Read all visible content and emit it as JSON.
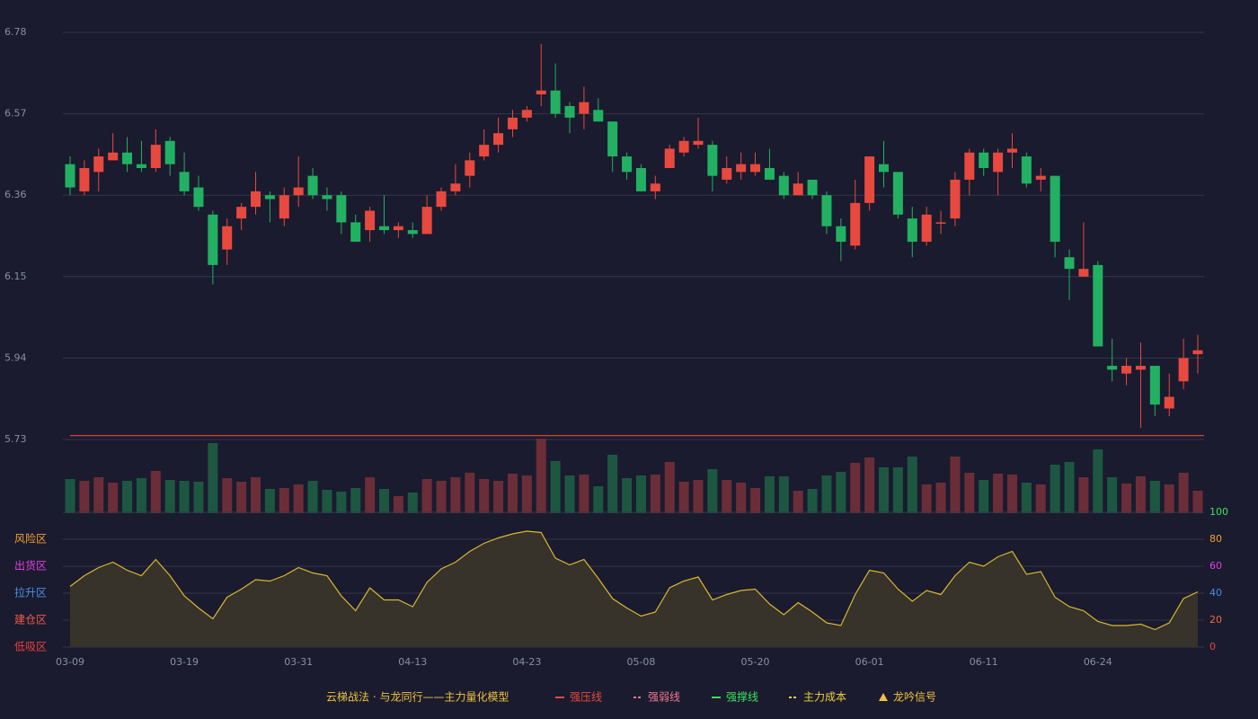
{
  "chart_data": {
    "type": "candlestick",
    "categories": [
      "03-09",
      null,
      null,
      null,
      null,
      null,
      null,
      null,
      "03-19",
      null,
      null,
      null,
      null,
      null,
      null,
      null,
      "03-31",
      null,
      null,
      null,
      null,
      null,
      null,
      null,
      "04-13",
      null,
      null,
      null,
      null,
      null,
      null,
      null,
      "04-23",
      null,
      null,
      null,
      null,
      null,
      null,
      null,
      "05-08",
      null,
      null,
      null,
      null,
      null,
      null,
      null,
      "05-20",
      null,
      null,
      null,
      null,
      null,
      null,
      null,
      "06-01",
      null,
      null,
      null,
      null,
      null,
      null,
      null,
      "06-11",
      null,
      null,
      null,
      null,
      null,
      null,
      null,
      "06-24",
      null,
      null,
      null,
      null,
      null,
      null,
      null
    ],
    "open": [
      6.44,
      6.37,
      6.42,
      6.45,
      6.47,
      6.44,
      6.43,
      6.5,
      6.42,
      6.38,
      6.31,
      6.22,
      6.3,
      6.33,
      6.36,
      6.3,
      6.36,
      6.41,
      6.36,
      6.36,
      6.29,
      6.27,
      6.28,
      6.27,
      6.27,
      6.26,
      6.33,
      6.37,
      6.41,
      6.46,
      6.49,
      6.53,
      6.56,
      6.62,
      6.63,
      6.59,
      6.57,
      6.58,
      6.55,
      6.46,
      6.43,
      6.37,
      6.43,
      6.47,
      6.49,
      6.49,
      6.4,
      6.42,
      6.42,
      6.43,
      6.41,
      6.36,
      6.4,
      6.36,
      6.28,
      6.23,
      6.34,
      6.44,
      6.42,
      6.3,
      6.24,
      6.29,
      6.3,
      6.4,
      6.47,
      6.42,
      6.47,
      6.46,
      6.4,
      6.41,
      6.2,
      6.15,
      6.18,
      5.92,
      5.9,
      5.91,
      5.92,
      5.81,
      5.88,
      5.95
    ],
    "close": [
      6.38,
      6.43,
      6.46,
      6.47,
      6.44,
      6.43,
      6.49,
      6.44,
      6.37,
      6.33,
      6.18,
      6.28,
      6.33,
      6.37,
      6.35,
      6.36,
      6.38,
      6.36,
      6.35,
      6.29,
      6.24,
      6.32,
      6.27,
      6.28,
      6.26,
      6.33,
      6.37,
      6.39,
      6.45,
      6.49,
      6.52,
      6.56,
      6.58,
      6.63,
      6.57,
      6.56,
      6.6,
      6.55,
      6.46,
      6.42,
      6.37,
      6.39,
      6.48,
      6.5,
      6.5,
      6.41,
      6.43,
      6.44,
      6.44,
      6.4,
      6.36,
      6.39,
      6.36,
      6.28,
      6.24,
      6.34,
      6.46,
      6.42,
      6.31,
      6.24,
      6.31,
      6.29,
      6.4,
      6.47,
      6.43,
      6.47,
      6.48,
      6.39,
      6.41,
      6.24,
      6.17,
      6.17,
      5.97,
      5.91,
      5.92,
      5.92,
      5.82,
      5.84,
      5.94,
      5.96
    ],
    "high": [
      6.46,
      6.45,
      6.48,
      6.52,
      6.51,
      6.5,
      6.53,
      6.51,
      6.47,
      6.41,
      6.32,
      6.3,
      6.34,
      6.42,
      6.37,
      6.38,
      6.46,
      6.43,
      6.38,
      6.37,
      6.31,
      6.33,
      6.36,
      6.29,
      6.29,
      6.36,
      6.38,
      6.44,
      6.47,
      6.53,
      6.56,
      6.58,
      6.59,
      6.75,
      6.7,
      6.6,
      6.64,
      6.61,
      6.55,
      6.47,
      6.44,
      6.41,
      6.49,
      6.51,
      6.56,
      6.5,
      6.46,
      6.47,
      6.47,
      6.48,
      6.42,
      6.42,
      6.4,
      6.37,
      6.3,
      6.4,
      6.46,
      6.5,
      6.42,
      6.33,
      6.33,
      6.32,
      6.42,
      6.48,
      6.48,
      6.48,
      6.52,
      6.47,
      6.43,
      6.41,
      6.22,
      6.29,
      6.19,
      5.99,
      5.94,
      5.98,
      5.92,
      5.9,
      5.99,
      6.0
    ],
    "low": [
      6.36,
      6.36,
      6.37,
      6.45,
      6.42,
      6.42,
      6.42,
      6.41,
      6.36,
      6.32,
      6.13,
      6.18,
      6.27,
      6.31,
      6.29,
      6.28,
      6.33,
      6.35,
      6.32,
      6.26,
      6.24,
      6.24,
      6.26,
      6.25,
      6.25,
      6.26,
      6.32,
      6.36,
      6.38,
      6.45,
      6.47,
      6.51,
      6.55,
      6.59,
      6.56,
      6.52,
      6.53,
      6.55,
      6.42,
      6.4,
      6.37,
      6.35,
      6.43,
      6.46,
      6.48,
      6.37,
      6.39,
      6.4,
      6.41,
      6.4,
      6.35,
      6.36,
      6.35,
      6.26,
      6.19,
      6.22,
      6.32,
      6.38,
      6.3,
      6.2,
      6.23,
      6.26,
      6.28,
      6.36,
      6.41,
      6.36,
      6.43,
      6.38,
      6.37,
      6.2,
      6.09,
      6.15,
      5.97,
      5.88,
      5.87,
      5.76,
      5.79,
      5.79,
      5.86,
      5.9
    ],
    "ylim": [
      5.73,
      6.78
    ],
    "yticks": [
      5.73,
      5.94,
      6.15,
      6.36,
      6.57,
      6.78
    ],
    "grid": true,
    "up_color": "#e8493f",
    "down_color": "#22b162",
    "reference_lines": [
      {
        "value": 5.74,
        "color": "#e8493f"
      }
    ],
    "volume": [
      38,
      36,
      40,
      34,
      36,
      39,
      47,
      37,
      36,
      35,
      78,
      39,
      35,
      40,
      27,
      28,
      32,
      36,
      26,
      24,
      28,
      40,
      27,
      19,
      23,
      38,
      36,
      40,
      45,
      38,
      36,
      44,
      42,
      83,
      58,
      42,
      43,
      30,
      65,
      39,
      42,
      43,
      57,
      35,
      37,
      49,
      37,
      34,
      28,
      41,
      41,
      25,
      27,
      42,
      46,
      56,
      62,
      51,
      51,
      63,
      32,
      34,
      63,
      45,
      37,
      44,
      43,
      34,
      32,
      54,
      57,
      40,
      71,
      40,
      33,
      41,
      36,
      32,
      45,
      25
    ],
    "volume_up_color": "#6b2d38",
    "volume_down_color": "#1d5742",
    "oscillator": {
      "values": [
        45,
        53,
        59,
        63,
        57,
        53,
        65,
        53,
        38,
        29,
        21,
        37,
        43,
        50,
        49,
        53,
        59,
        55,
        53,
        38,
        27,
        44,
        35,
        35,
        30,
        48,
        58,
        63,
        71,
        77,
        81,
        84,
        86,
        85,
        66,
        61,
        65,
        51,
        36,
        29,
        23,
        26,
        44,
        49,
        52,
        35,
        39,
        42,
        43,
        32,
        24,
        33,
        26,
        18,
        16,
        39,
        57,
        55,
        43,
        34,
        42,
        39,
        53,
        63,
        60,
        67,
        71,
        54,
        56,
        37,
        30,
        27,
        19,
        16,
        16,
        17,
        13,
        18,
        36,
        41
      ],
      "color": "#d9b82c",
      "fill": "#37322a",
      "ylim": [
        0,
        100
      ],
      "yticks": [
        0,
        20,
        40,
        60,
        80,
        100
      ],
      "ytick_colors": [
        "#e8493f",
        "#ef6a3a",
        "#4a8fe8",
        "#e040e0",
        "#f0a030",
        "#3ee05a"
      ],
      "zones": [
        {
          "label": "风险区",
          "value": 80,
          "color": "#f0a030"
        },
        {
          "label": "出货区",
          "value": 60,
          "color": "#e040e0"
        },
        {
          "label": "拉升区",
          "value": 40,
          "color": "#4a8fe8"
        },
        {
          "label": "建仓区",
          "value": 20,
          "color": "#ef5a4a"
        },
        {
          "label": "低吸区",
          "value": 0,
          "color": "#e8403f"
        }
      ]
    },
    "legend": {
      "title": "云梯战法 · 与龙同行——主力量化模型",
      "title_color": "#f0c040",
      "items": [
        {
          "name": "强压线",
          "color": "#e8493f",
          "style": "solid"
        },
        {
          "name": "强弱线",
          "color": "#f07890",
          "style": "dashed"
        },
        {
          "name": "强撑线",
          "color": "#3ee05a",
          "style": "solid"
        },
        {
          "name": "主力成本",
          "color": "#f0d040",
          "style": "dashed"
        },
        {
          "name": "龙吟信号",
          "color": "#f0c040",
          "style": "triangle"
        }
      ]
    }
  }
}
